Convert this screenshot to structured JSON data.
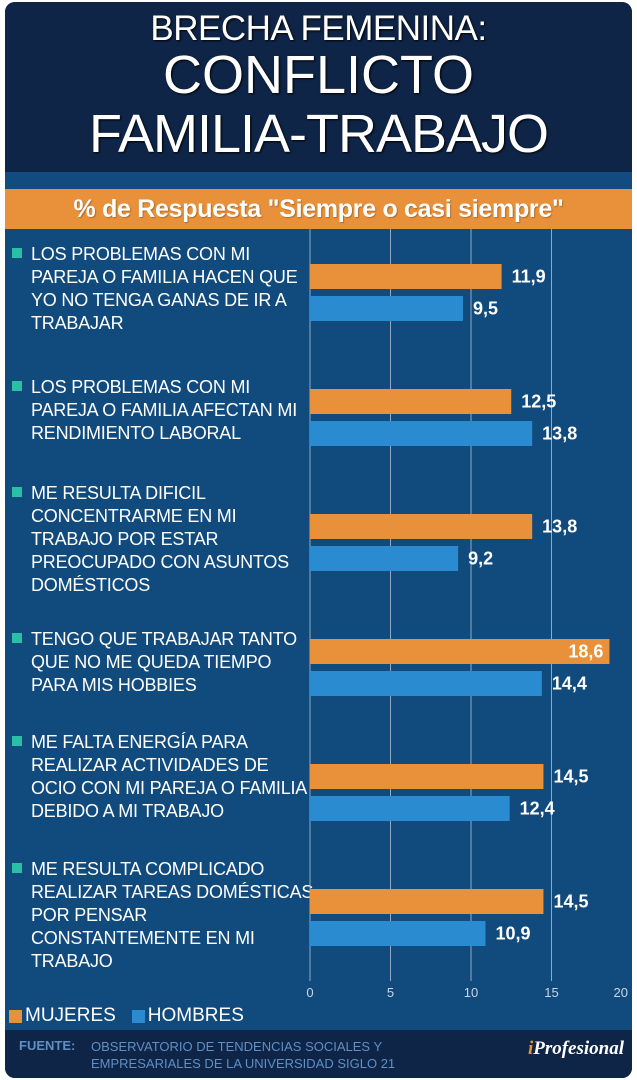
{
  "header": {
    "title_line1": "BRECHA FEMENINA:",
    "title_line2": "CONFLICTO",
    "title_line3": "FAMILIA-TRABAJO"
  },
  "subtitle": "% de Respuesta \"Siempre o casi siempre\"",
  "colors": {
    "mujeres": "#e8913a",
    "hombres": "#2a8bd0",
    "bullet": "#2bbfa4",
    "header_bg": "#0f2548",
    "chart_bg": "#114a7c"
  },
  "chart_data": {
    "type": "bar",
    "orientation": "horizontal",
    "title": "BRECHA FEMENINA: CONFLICTO FAMILIA-TRABAJO",
    "subtitle": "% de Respuesta \"Siempre o casi siempre\"",
    "categories": [
      "LOS PROBLEMAS CON MI PAREJA O FAMILIA HACEN QUE YO NO TENGA GANAS DE IR A TRABAJAR",
      "LOS PROBLEMAS CON MI PAREJA O FAMILIA AFECTAN MI RENDIMIENTO LABORAL",
      "ME RESULTA DIFICIL CONCENTRARME EN MI TRABAJO POR ESTAR PREOCUPADO CON ASUNTOS DOMÉSTICOS",
      "TENGO QUE TRABAJAR TANTO QUE NO ME QUEDA TIEMPO PARA MIS HOBBIES",
      "ME FALTA ENERGÍA PARA REALIZAR ACTIVIDADES DE OCIO CON MI PAREJA O FAMILIA DEBIDO A MI TRABAJO",
      "ME RESULTA COMPLICADO REALIZAR TAREAS DOMÉSTICAS POR PENSAR CONSTANTEMENTE EN MI TRABAJO"
    ],
    "series": [
      {
        "name": "MUJERES",
        "color": "#e8913a",
        "values": [
          11.9,
          12.5,
          13.8,
          18.6,
          14.5,
          14.5
        ],
        "labels": [
          "11,9",
          "12,5",
          "13,8",
          "18,6",
          "14,5",
          "14,5"
        ]
      },
      {
        "name": "HOMBRES",
        "color": "#2a8bd0",
        "values": [
          9.5,
          13.8,
          9.2,
          14.4,
          12.4,
          10.9
        ],
        "labels": [
          "9,5",
          "13,8",
          "9,2",
          "14,4",
          "12,4",
          "10,9"
        ]
      }
    ],
    "xlim": [
      0,
      20
    ],
    "xticks": [
      0,
      5,
      10,
      15,
      20
    ],
    "xtick_labels": [
      "0",
      "5",
      "10",
      "15",
      "20"
    ],
    "xlabel": "",
    "ylabel": "",
    "grid": true,
    "legend": "bottom-left"
  },
  "legend": {
    "mujeres": "MUJERES",
    "hombres": "HOMBRES"
  },
  "footer": {
    "source_label": "FUENTE:",
    "source_line1": "OBSERVATORIO DE TENDENCIAS SOCIALES Y",
    "source_line2": "EMPRESARIALES DE LA UNIVERSIDAD SIGLO 21",
    "logo_i": "i",
    "logo_rest": "Profesional"
  }
}
